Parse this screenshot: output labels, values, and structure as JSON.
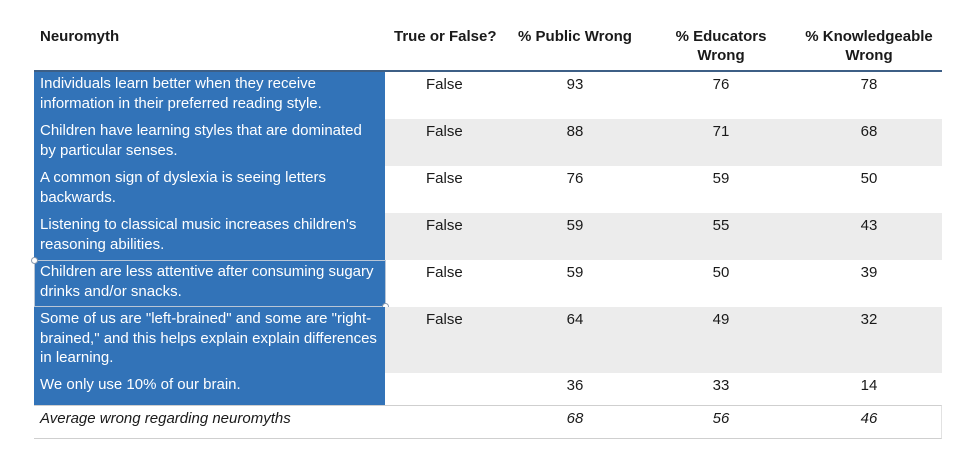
{
  "headers": {
    "neuromyth": "Neuromyth",
    "true_false": "True or False?",
    "public": "% Public Wrong",
    "educators": "% Educators Wrong",
    "knowledgeable": "% Knowledgeable Wrong"
  },
  "rows": [
    {
      "myth": "Individuals learn better when they receive information in their preferred reading style.",
      "tf": "False",
      "public": "93",
      "educators": "76",
      "knowledgeable": "78"
    },
    {
      "myth": "Children have learning styles that are dominated by particular senses.",
      "tf": "False",
      "public": "88",
      "educators": "71",
      "knowledgeable": "68"
    },
    {
      "myth": "A common sign of dyslexia is seeing letters backwards.",
      "tf": "False",
      "public": "76",
      "educators": "59",
      "knowledgeable": "50"
    },
    {
      "myth": "Listening to classical music increases children's reasoning abilities.",
      "tf": "False",
      "public": "59",
      "educators": "55",
      "knowledgeable": "43"
    },
    {
      "myth": "Children are less attentive after consuming sugary drinks and/or snacks.",
      "tf": "False",
      "public": "59",
      "educators": "50",
      "knowledgeable": "39"
    },
    {
      "myth": "Some of us are \"left-brained\" and some are \"right-brained,\" and this helps explain explain differences in learning.",
      "tf": "False",
      "public": "64",
      "educators": "49",
      "knowledgeable": "32"
    },
    {
      "myth": "We only use 10% of our brain.",
      "tf": "",
      "public": "36",
      "educators": "33",
      "knowledgeable": "14"
    }
  ],
  "average": {
    "label": "Average wrong regarding neuromyths",
    "public": "68",
    "educators": "56",
    "knowledgeable": "46"
  },
  "colors": {
    "myth_cell": "#3273b8",
    "alt_row": "#ececec",
    "header_rule": "#3d5f86"
  }
}
